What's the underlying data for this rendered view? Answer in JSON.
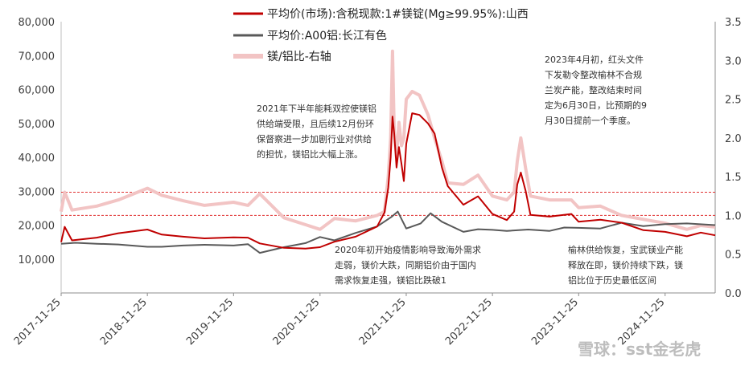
{
  "chart_data": {
    "type": "line",
    "title": "",
    "xlabel": "",
    "ylabel": "",
    "x_ticks": [
      "2017-11-25",
      "2018-11-25",
      "2019-11-25",
      "2020-11-25",
      "2021-11-25",
      "2022-11-25",
      "2023-11-25",
      "2024-11-25"
    ],
    "xlim": [
      "2017-11-25",
      "2025-06-25"
    ],
    "y_left_ticks": [
      "10,000",
      "20,000",
      "30,000",
      "40,000",
      "50,000",
      "60,000",
      "70,000",
      "80,000"
    ],
    "ylim_left": [
      0,
      80000
    ],
    "y_right_ticks": [
      "0.0",
      "0.5",
      "1.0",
      "1.5",
      "2.0",
      "2.5",
      "3.0",
      "3.5"
    ],
    "ylim_right": [
      0,
      3.5
    ],
    "reference_lines_right_axis": [
      1.3,
      1.0
    ],
    "legend": [
      {
        "label": "平均价(市场):含税现款:1#镁锭(Mg≥99.95%):山西",
        "color": "#c00000"
      },
      {
        "label": "平均价:A00铝:长江有色",
        "color": "#595959"
      },
      {
        "label": "镁/铝比-右轴",
        "color": "#f2c4c4"
      }
    ],
    "series": [
      {
        "name": "平均价(市场):含税现款:1#镁锭(Mg≥99.95%):山西",
        "axis": "left",
        "color": "#c00000",
        "points": [
          [
            "2017-11-25",
            15000
          ],
          [
            "2017-12-10",
            19500
          ],
          [
            "2018-01-10",
            15500
          ],
          [
            "2018-04-25",
            16300
          ],
          [
            "2018-07-25",
            17600
          ],
          [
            "2018-11-25",
            18700
          ],
          [
            "2019-01-25",
            17200
          ],
          [
            "2019-04-25",
            16600
          ],
          [
            "2019-07-25",
            16100
          ],
          [
            "2019-11-25",
            16400
          ],
          [
            "2020-01-25",
            16300
          ],
          [
            "2020-03-15",
            14600
          ],
          [
            "2020-06-25",
            13300
          ],
          [
            "2020-09-25",
            13100
          ],
          [
            "2020-11-25",
            13500
          ],
          [
            "2021-01-25",
            15100
          ],
          [
            "2021-04-25",
            16600
          ],
          [
            "2021-07-25",
            19600
          ],
          [
            "2021-08-25",
            23700
          ],
          [
            "2021-09-10",
            31000
          ],
          [
            "2021-09-20",
            40000
          ],
          [
            "2021-09-28",
            52000
          ],
          [
            "2021-10-05",
            47000
          ],
          [
            "2021-10-15",
            37000
          ],
          [
            "2021-10-25",
            43000
          ],
          [
            "2021-11-05",
            38000
          ],
          [
            "2021-11-15",
            33000
          ],
          [
            "2021-11-25",
            44000
          ],
          [
            "2021-12-20",
            53000
          ],
          [
            "2022-01-20",
            52500
          ],
          [
            "2022-02-25",
            50000
          ],
          [
            "2022-03-25",
            47000
          ],
          [
            "2022-04-25",
            37000
          ],
          [
            "2022-05-20",
            31500
          ],
          [
            "2022-07-25",
            26000
          ],
          [
            "2022-09-25",
            28500
          ],
          [
            "2022-11-25",
            23300
          ],
          [
            "2023-01-25",
            21500
          ],
          [
            "2023-02-25",
            24000
          ],
          [
            "2023-03-10",
            32000
          ],
          [
            "2023-03-25",
            35500
          ],
          [
            "2023-04-15",
            30000
          ],
          [
            "2023-05-05",
            23000
          ],
          [
            "2023-07-25",
            22500
          ],
          [
            "2023-10-25",
            23300
          ],
          [
            "2023-11-25",
            21000
          ],
          [
            "2024-02-25",
            21600
          ],
          [
            "2024-05-25",
            20700
          ],
          [
            "2024-08-25",
            18500
          ],
          [
            "2024-11-25",
            18000
          ],
          [
            "2025-02-25",
            16700
          ],
          [
            "2025-04-25",
            17800
          ],
          [
            "2025-06-25",
            17000
          ]
        ]
      },
      {
        "name": "平均价:A00铝:长江有色",
        "axis": "left",
        "color": "#595959",
        "points": [
          [
            "2017-11-25",
            14500
          ],
          [
            "2018-01-25",
            14800
          ],
          [
            "2018-04-25",
            14500
          ],
          [
            "2018-07-25",
            14300
          ],
          [
            "2018-11-25",
            13600
          ],
          [
            "2019-01-25",
            13600
          ],
          [
            "2019-04-25",
            14000
          ],
          [
            "2019-07-25",
            14200
          ],
          [
            "2019-11-25",
            14000
          ],
          [
            "2020-01-25",
            14400
          ],
          [
            "2020-03-15",
            11800
          ],
          [
            "2020-06-25",
            13500
          ],
          [
            "2020-09-25",
            14700
          ],
          [
            "2020-11-25",
            16500
          ],
          [
            "2021-01-25",
            15500
          ],
          [
            "2021-04-25",
            17700
          ],
          [
            "2021-07-25",
            19600
          ],
          [
            "2021-09-25",
            22500
          ],
          [
            "2021-10-20",
            24000
          ],
          [
            "2021-11-25",
            19000
          ],
          [
            "2022-01-25",
            20500
          ],
          [
            "2022-03-08",
            23500
          ],
          [
            "2022-04-25",
            21000
          ],
          [
            "2022-07-25",
            18000
          ],
          [
            "2022-09-25",
            18800
          ],
          [
            "2022-11-25",
            18600
          ],
          [
            "2023-01-25",
            18300
          ],
          [
            "2023-04-25",
            18700
          ],
          [
            "2023-07-25",
            18300
          ],
          [
            "2023-09-25",
            19300
          ],
          [
            "2023-11-25",
            19200
          ],
          [
            "2024-02-25",
            19000
          ],
          [
            "2024-05-25",
            20700
          ],
          [
            "2024-08-25",
            19700
          ],
          [
            "2024-11-25",
            20300
          ],
          [
            "2025-02-25",
            20500
          ],
          [
            "2025-06-25",
            20000
          ]
        ]
      },
      {
        "name": "镁/铝比-右轴",
        "axis": "right",
        "color": "#f2c4c4",
        "points": [
          [
            "2017-11-25",
            1.05
          ],
          [
            "2017-12-10",
            1.3
          ],
          [
            "2018-01-10",
            1.07
          ],
          [
            "2018-04-25",
            1.12
          ],
          [
            "2018-07-25",
            1.2
          ],
          [
            "2018-11-25",
            1.35
          ],
          [
            "2019-01-25",
            1.26
          ],
          [
            "2019-04-25",
            1.19
          ],
          [
            "2019-07-25",
            1.13
          ],
          [
            "2019-11-25",
            1.17
          ],
          [
            "2020-01-25",
            1.13
          ],
          [
            "2020-03-15",
            1.28
          ],
          [
            "2020-06-25",
            0.97
          ],
          [
            "2020-09-25",
            0.88
          ],
          [
            "2020-11-25",
            0.82
          ],
          [
            "2021-01-25",
            0.96
          ],
          [
            "2021-04-25",
            0.93
          ],
          [
            "2021-07-25",
            1.0
          ],
          [
            "2021-08-25",
            1.05
          ],
          [
            "2021-09-10",
            1.5
          ],
          [
            "2021-09-20",
            2.0
          ],
          [
            "2021-09-28",
            3.12
          ],
          [
            "2021-10-05",
            2.1
          ],
          [
            "2021-10-15",
            1.75
          ],
          [
            "2021-10-25",
            2.2
          ],
          [
            "2021-11-05",
            1.9
          ],
          [
            "2021-11-15",
            2.0
          ],
          [
            "2021-11-25",
            2.5
          ],
          [
            "2021-12-20",
            2.6
          ],
          [
            "2022-01-20",
            2.55
          ],
          [
            "2022-02-25",
            2.3
          ],
          [
            "2022-03-25",
            2.0
          ],
          [
            "2022-04-25",
            1.7
          ],
          [
            "2022-05-20",
            1.42
          ],
          [
            "2022-07-25",
            1.4
          ],
          [
            "2022-09-25",
            1.52
          ],
          [
            "2022-11-25",
            1.25
          ],
          [
            "2023-01-25",
            1.2
          ],
          [
            "2023-02-25",
            1.3
          ],
          [
            "2023-03-10",
            1.7
          ],
          [
            "2023-03-25",
            2.0
          ],
          [
            "2023-04-15",
            1.6
          ],
          [
            "2023-05-05",
            1.25
          ],
          [
            "2023-07-25",
            1.2
          ],
          [
            "2023-10-25",
            1.2
          ],
          [
            "2023-11-25",
            1.1
          ],
          [
            "2024-02-25",
            1.12
          ],
          [
            "2024-05-25",
            1.0
          ],
          [
            "2024-08-25",
            0.95
          ],
          [
            "2024-11-25",
            0.9
          ],
          [
            "2025-02-25",
            0.82
          ],
          [
            "2025-04-25",
            0.87
          ],
          [
            "2025-06-25",
            0.85
          ]
        ]
      }
    ],
    "annotations": [
      {
        "lines": [
          "2021年下半年能耗双控使镁铝",
          "供给端受限，且后续12月份环",
          "保督察进一步加剧行业对供给",
          "的担忧，镁铝比大幅上涨。"
        ]
      },
      {
        "lines": [
          "2023年4月初，红头文件",
          "下发勒令整改榆林不合规",
          "兰炭产能，整改结束时间",
          "定为6月30日，比预期的9",
          "月30日提前一个季度。"
        ]
      },
      {
        "lines": [
          "2020年初开始疫情影响导致海外需求",
          "走弱，镁价大跌，同期铝价由于国内",
          "需求恢复走强，镁铝比跌破1"
        ]
      },
      {
        "lines": [
          "榆林供给恢复，宝武镁业产能",
          "释放在即，镁价持续下跌，镁",
          "铝比位于历史最低区间"
        ]
      }
    ],
    "grid": false,
    "legend_position": "top-center"
  },
  "watermark": "雪球：sst金老虎"
}
